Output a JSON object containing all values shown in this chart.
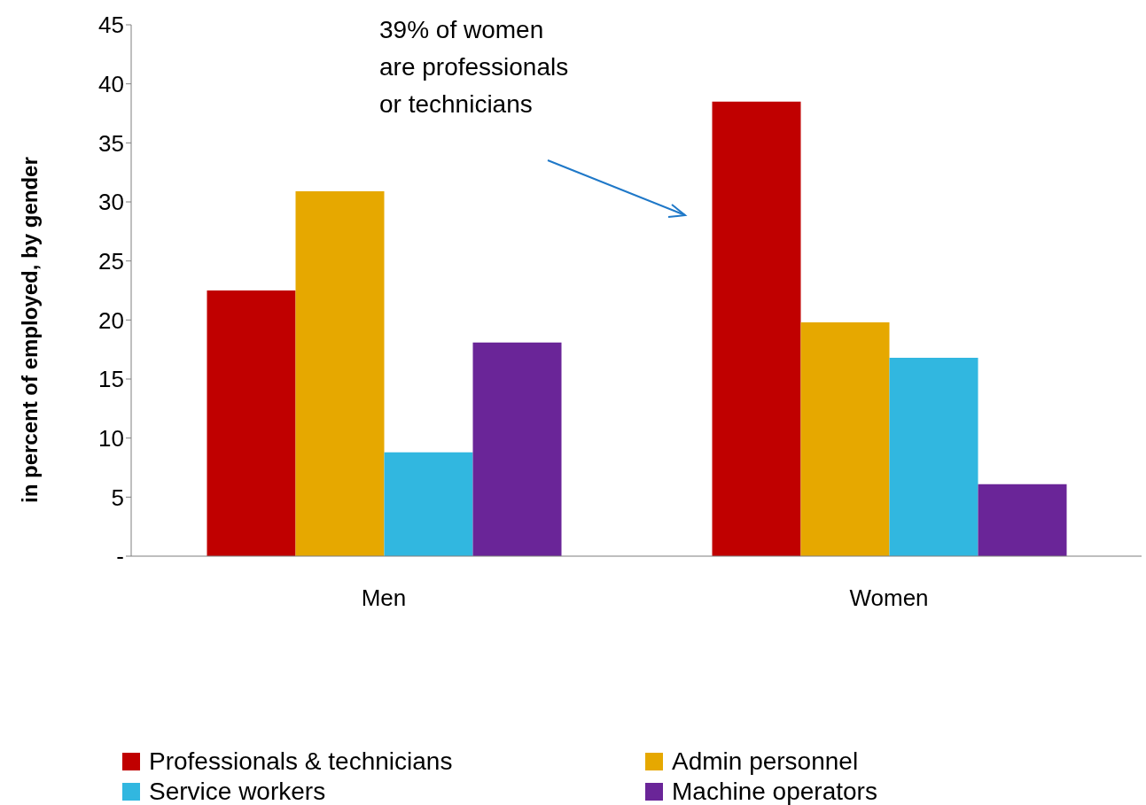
{
  "chart_data": {
    "type": "bar",
    "ylabel": "in percent of employed, by gender",
    "categories": [
      "Men",
      "Women"
    ],
    "series": [
      {
        "name": "Professionals & technicians",
        "color": "#c00000",
        "values": [
          22.5,
          38.5
        ]
      },
      {
        "name": "Admin personnel",
        "color": "#e6a800",
        "values": [
          30.9,
          19.8
        ]
      },
      {
        "name": "Service workers",
        "color": "#31b7e0",
        "values": [
          8.8,
          16.8
        ]
      },
      {
        "name": "Machine operators",
        "color": "#6a2598",
        "values": [
          18.1,
          6.1
        ]
      }
    ],
    "ylim": [
      0,
      45
    ],
    "yticks": [
      {
        "value": 0,
        "label": "-"
      },
      5,
      10,
      15,
      20,
      25,
      30,
      35,
      40,
      45
    ],
    "legend": "bottom",
    "annotations": [
      "39% of women\nare professionals\nor technicians"
    ]
  }
}
